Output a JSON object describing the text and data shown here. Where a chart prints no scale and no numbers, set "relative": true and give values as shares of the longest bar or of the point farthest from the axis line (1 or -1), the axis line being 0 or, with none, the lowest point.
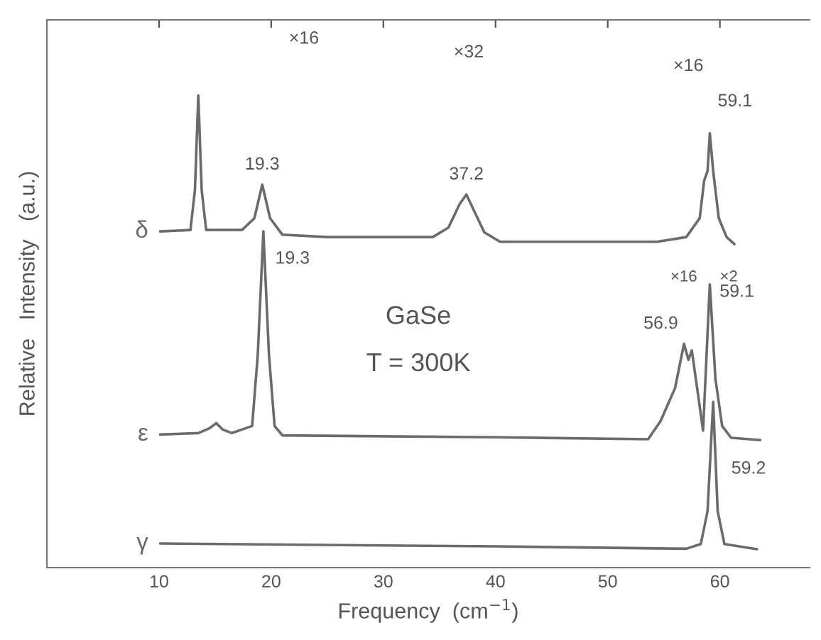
{
  "chart_data": {
    "type": "line",
    "relative": true,
    "xlabel": "Frequency  (cm$^{−1}$)",
    "ylabel": "Relative   Intensity   (a.u.)",
    "xlim": [
      0,
      68
    ],
    "xticks": [
      10,
      20,
      30,
      40,
      50,
      60
    ],
    "grid": false,
    "legend": false,
    "marker": "none",
    "line_style": "solid",
    "series": [
      {
        "name": "δ",
        "color": "#6b6b6b",
        "x": [
          10.1,
          12.8,
          13.2,
          13.5,
          13.8,
          14.2,
          17.4,
          18.5,
          19.2,
          19.9,
          21,
          25,
          34.4,
          35.8,
          36.8,
          37.4,
          38,
          39,
          40.4,
          50,
          54.4,
          57,
          58.2,
          58.6,
          58.9,
          59.1,
          59.4,
          59.9,
          60.6,
          61.3
        ],
        "values": [
          0.712,
          0.715,
          0.8,
          1.0,
          0.8,
          0.715,
          0.715,
          0.74,
          0.811,
          0.74,
          0.705,
          0.7,
          0.7,
          0.72,
          0.77,
          0.79,
          0.76,
          0.71,
          0.69,
          0.69,
          0.69,
          0.7,
          0.74,
          0.82,
          0.84,
          0.92,
          0.84,
          0.74,
          0.7,
          0.685
        ]
      },
      {
        "name": "ε",
        "color": "#6b6b6b",
        "x": [
          10.1,
          13.5,
          14.5,
          15.1,
          15.7,
          16.5,
          18.3,
          18.8,
          19.3,
          19.8,
          20.3,
          21,
          40,
          53.6,
          54.2,
          54.7,
          56,
          56.8,
          57.2,
          57.5,
          58.5,
          59.1,
          59.6,
          60.2,
          61,
          63.6
        ],
        "values": [
          0.282,
          0.285,
          0.295,
          0.306,
          0.292,
          0.285,
          0.3,
          0.45,
          0.712,
          0.45,
          0.3,
          0.28,
          0.276,
          0.272,
          null,
          0.31,
          0.38,
          0.474,
          0.44,
          0.46,
          0.29,
          0.6,
          0.4,
          0.3,
          0.275,
          0.27
        ]
      },
      {
        "name": "γ",
        "color": "#6b6b6b",
        "x": [
          10.1,
          40,
          57,
          58.3,
          58.9,
          59.4,
          59.8,
          60.4,
          63.3
        ],
        "values": [
          0.051,
          0.045,
          0.04,
          0.05,
          0.12,
          0.351,
          0.12,
          0.05,
          0.039
        ]
      }
    ],
    "annotations": [
      {
        "text": "19.3",
        "x": 19.2,
        "y": 0.811
      },
      {
        "text": "37.2",
        "x": 37.4,
        "y": 0.79
      },
      {
        "text": "59.1",
        "x": 59.1,
        "y": 0.92
      },
      {
        "text": "19.3",
        "x": 19.3,
        "y": 0.712
      },
      {
        "text": "59.1",
        "x": 59.1,
        "y": 0.6
      },
      {
        "text": "56.9",
        "x": 56.8,
        "y": 0.474
      },
      "59.2",
      "×16",
      "×32",
      "×16",
      "×16",
      "×2",
      "GaSe",
      "T = 300K"
    ]
  }
}
